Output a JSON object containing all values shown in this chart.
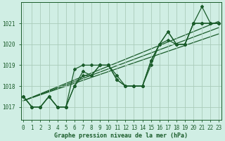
{
  "xlabel": "Graphe pression niveau de la mer (hPa)",
  "background_color": "#d0eee4",
  "grid_color": "#aaccbb",
  "line_color": "#1a5c2a",
  "x_ticks": [
    0,
    1,
    2,
    3,
    4,
    5,
    6,
    7,
    8,
    9,
    10,
    11,
    12,
    13,
    14,
    15,
    16,
    17,
    18,
    19,
    20,
    21,
    22,
    23
  ],
  "y_ticks": [
    1017,
    1018,
    1019,
    1020,
    1021
  ],
  "ylim": [
    1016.4,
    1022.0
  ],
  "xlim": [
    -0.3,
    23.3
  ],
  "series": [
    [
      1017.5,
      1017.0,
      1017.0,
      1017.5,
      1017.0,
      1017.0,
      1018.8,
      1019.0,
      1019.0,
      1019.0,
      1019.0,
      1018.3,
      1018.0,
      1018.0,
      1018.0,
      1019.2,
      1020.0,
      1020.6,
      1020.0,
      1020.0,
      1021.0,
      1021.8,
      1021.0,
      1021.0
    ],
    [
      1017.5,
      1017.0,
      1017.0,
      1017.5,
      1017.0,
      1017.0,
      1018.0,
      1018.7,
      1018.5,
      1019.0,
      1019.0,
      1018.5,
      1018.0,
      1018.0,
      1018.0,
      1019.2,
      1020.0,
      1020.6,
      1020.0,
      1020.0,
      1021.0,
      1021.0,
      1021.0,
      1021.0
    ],
    [
      1017.5,
      1017.0,
      1017.0,
      1017.5,
      1017.0,
      1017.0,
      1018.0,
      1018.5,
      1018.5,
      1019.0,
      1019.0,
      1018.3,
      1018.0,
      1018.0,
      1018.0,
      1019.0,
      1020.0,
      1020.2,
      1020.0,
      1020.0,
      1021.0,
      1021.0,
      1021.0,
      1021.0
    ]
  ],
  "trend_lines": [
    [
      1017.3,
      1021.1
    ],
    [
      1017.3,
      1020.8
    ],
    [
      1017.3,
      1020.5
    ]
  ],
  "marker": "D",
  "marker_size": 2.0,
  "line_width": 0.9,
  "tick_fontsize": 5.5,
  "xlabel_fontsize": 6.0
}
